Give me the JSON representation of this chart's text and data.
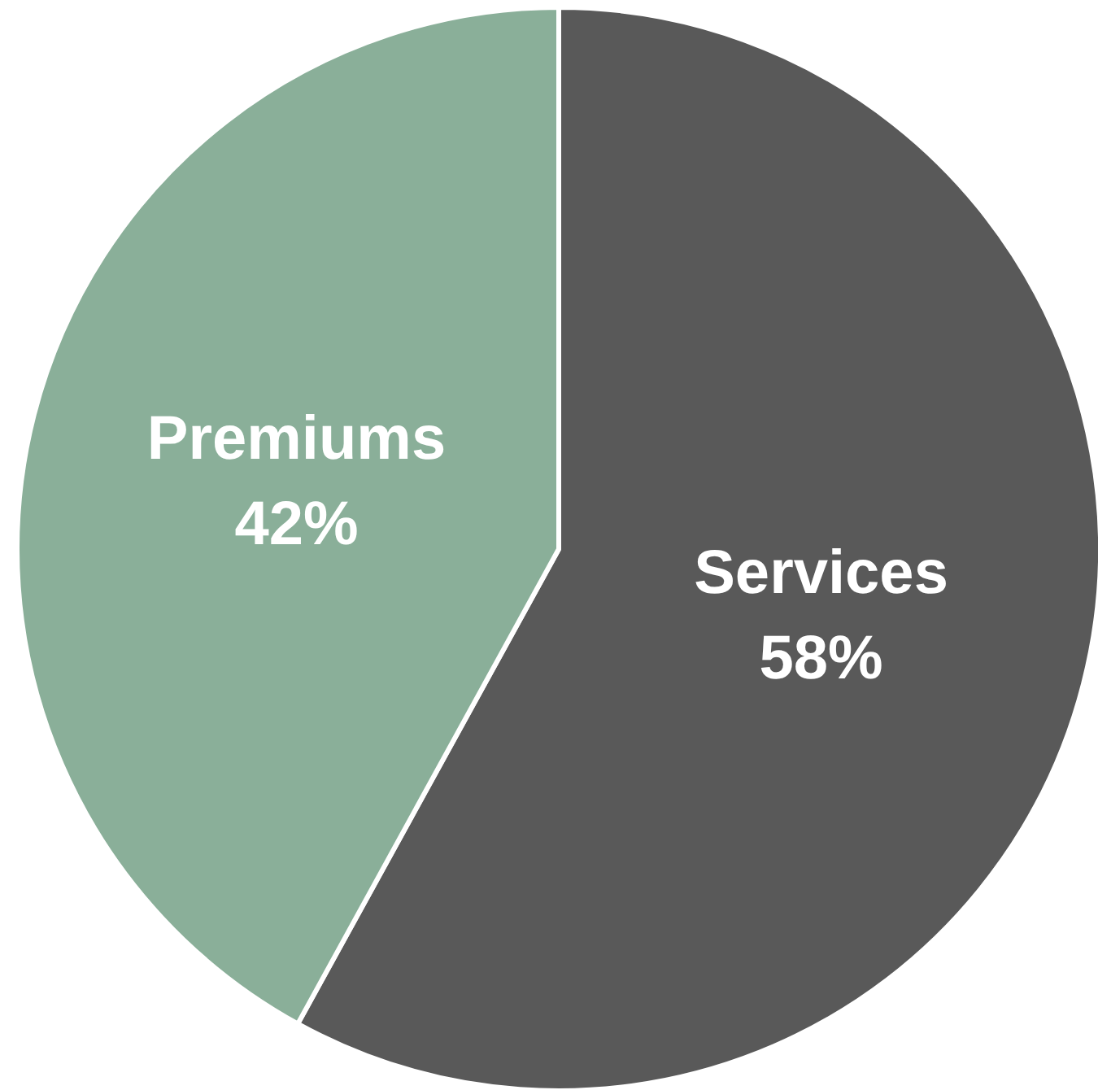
{
  "chart_data": {
    "type": "pie",
    "categories": [
      "Services",
      "Premiums"
    ],
    "values": [
      58,
      42
    ],
    "colors": [
      "#595959",
      "#8aaf99"
    ],
    "value_labels": [
      "58%",
      "42%"
    ]
  }
}
